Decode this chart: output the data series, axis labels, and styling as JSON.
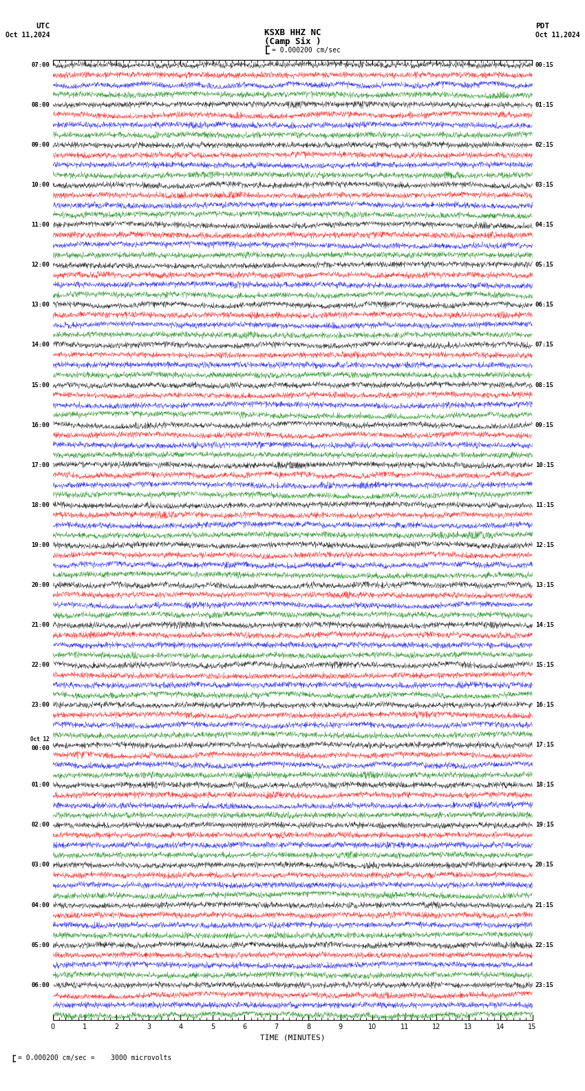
{
  "title_line1": "KSXB HHZ NC",
  "title_line2": "(Camp Six )",
  "scale_label": "= 0.000200 cm/sec",
  "left_header1": "UTC",
  "left_header2": "Oct 11,2024",
  "right_header1": "PDT",
  "right_header2": "Oct 11,2024",
  "bottom_label": "TIME (MINUTES)",
  "footer_label": "= 0.000200 cm/sec =    3000 microvolts",
  "utc_times": [
    "07:00",
    "08:00",
    "09:00",
    "10:00",
    "11:00",
    "12:00",
    "13:00",
    "14:00",
    "15:00",
    "16:00",
    "17:00",
    "18:00",
    "19:00",
    "20:00",
    "21:00",
    "22:00",
    "23:00",
    "00:00",
    "01:00",
    "02:00",
    "03:00",
    "04:00",
    "05:00",
    "06:00"
  ],
  "utc_prefix": [
    "",
    "",
    "",
    "",
    "",
    "",
    "",
    "",
    "",
    "",
    "",
    "",
    "",
    "",
    "",
    "",
    "",
    "Oct 12\n",
    "",
    "",
    "",
    "",
    "",
    ""
  ],
  "pdt_times": [
    "00:15",
    "01:15",
    "02:15",
    "03:15",
    "04:15",
    "05:15",
    "06:15",
    "07:15",
    "08:15",
    "09:15",
    "10:15",
    "11:15",
    "12:15",
    "13:15",
    "14:15",
    "15:15",
    "16:15",
    "17:15",
    "18:15",
    "19:15",
    "20:15",
    "21:15",
    "22:15",
    "23:15"
  ],
  "n_rows": 24,
  "n_traces_per_row": 4,
  "colors": [
    "black",
    "red",
    "blue",
    "green"
  ],
  "xmin": 0,
  "xmax": 15,
  "fig_width": 8.5,
  "fig_height": 15.84,
  "bg_color": "white",
  "trace_amplitude": 0.35,
  "noise_amplitude": 0.15,
  "seed": 42
}
